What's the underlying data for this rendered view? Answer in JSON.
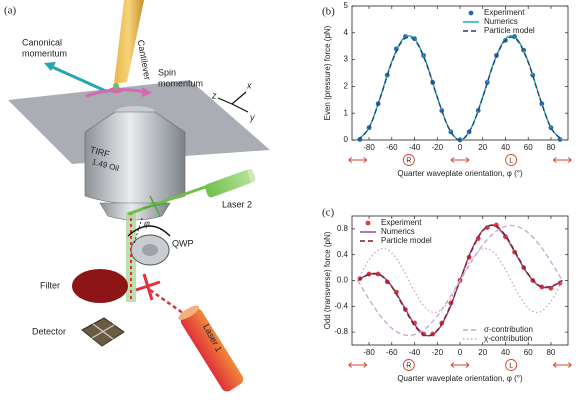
{
  "panel_labels": [
    "(a)",
    "(b)",
    "(c)"
  ],
  "diagram": {
    "cantilever": "Cantilever",
    "canonical_momentum": [
      "Canonical",
      "momentum"
    ],
    "spin_momentum": [
      "Spin",
      "momentum"
    ],
    "axes": [
      "z",
      "x",
      "y"
    ],
    "objective": [
      "TIRF",
      "1.49 Oil"
    ],
    "laser_2": "Laser 2",
    "qwp": "QWP",
    "angle": "φ",
    "filter": "Filter",
    "detector": "Detector",
    "laser_1": "Laser 1"
  },
  "chart_data": [
    {
      "type": "line",
      "xlabel": "Quarter waveplate orientation, φ (°)",
      "ylabel": "Even (pressure) force (pN)",
      "xlim": [
        -95,
        95
      ],
      "ylim": [
        0,
        5
      ],
      "xticks": [
        -80,
        -60,
        -40,
        -20,
        0,
        20,
        40,
        60,
        80
      ],
      "yticks": [
        0,
        1,
        2,
        3,
        4,
        5
      ],
      "polarization_markers": {
        "linear_x": [
          -90,
          0,
          90
        ],
        "circular": [
          {
            "x": -45,
            "label": "R"
          },
          {
            "x": 45,
            "label": "L"
          }
        ]
      },
      "series": [
        {
          "name": "Experiment",
          "color": "#2a64b4",
          "style": "markers",
          "legend": "top-right",
          "x": [
            -88,
            -80,
            -72,
            -64,
            -56,
            -48,
            -40,
            -32,
            -24,
            -16,
            -8,
            0,
            8,
            16,
            24,
            32,
            40,
            48,
            56,
            64,
            72,
            80,
            88
          ],
          "values": [
            0.02,
            0.46,
            1.35,
            2.42,
            3.4,
            3.86,
            3.78,
            3.15,
            2.15,
            1.1,
            0.3,
            0,
            0.3,
            1.1,
            2.15,
            3.15,
            3.72,
            3.86,
            3.35,
            2.42,
            1.35,
            0.46,
            0.02
          ]
        },
        {
          "name": "Numerics",
          "color": "#19a5a8",
          "style": "solid",
          "legend": "top-right",
          "x": [
            -90,
            -80,
            -70,
            -60,
            -50,
            -40,
            -30,
            -20,
            -10,
            0,
            10,
            20,
            30,
            40,
            50,
            60,
            70,
            80,
            90
          ],
          "values": [
            0,
            0.46,
            1.61,
            2.93,
            3.78,
            3.78,
            2.93,
            1.61,
            0.46,
            0,
            0.46,
            1.61,
            2.93,
            3.78,
            3.78,
            2.93,
            1.61,
            0.46,
            0
          ]
        },
        {
          "name": "Particle model",
          "color": "#2d3a6e",
          "style": "dashed",
          "legend": "top-right",
          "x": [
            -90,
            -80,
            -70,
            -60,
            -50,
            -40,
            -30,
            -20,
            -10,
            0,
            10,
            20,
            30,
            40,
            50,
            60,
            70,
            80,
            90
          ],
          "values": [
            0,
            0.45,
            1.59,
            2.89,
            3.73,
            3.73,
            2.89,
            1.59,
            0.45,
            0,
            0.45,
            1.59,
            2.89,
            3.73,
            3.73,
            2.89,
            1.59,
            0.45,
            0
          ]
        }
      ]
    },
    {
      "type": "line",
      "xlabel": "Quarter waveplate orientation, φ (°)",
      "ylabel": "Odd (transverse) force (pN)",
      "xlim": [
        -95,
        95
      ],
      "ylim": [
        -1,
        1
      ],
      "xticks": [
        -80,
        -60,
        -40,
        -20,
        0,
        20,
        40,
        60,
        80
      ],
      "yticks": [
        0.8,
        0.4,
        {
          "value": 0,
          "label": "0.0"
        },
        -0.4,
        -0.8
      ],
      "polarization_markers": {
        "linear_x": [
          -90,
          0,
          90
        ],
        "circular": [
          {
            "x": -45,
            "label": "R"
          },
          {
            "x": 45,
            "label": "L"
          }
        ]
      },
      "series": [
        {
          "name": "Experiment",
          "color": "#e0393a",
          "style": "markers",
          "legend": "top-left",
          "x": [
            -88,
            -80,
            -72,
            -64,
            -56,
            -48,
            -40,
            -32,
            -24,
            -16,
            -8,
            0,
            8,
            16,
            24,
            32,
            40,
            48,
            56,
            64,
            72,
            80,
            88
          ],
          "values": [
            0.03,
            0.1,
            0.1,
            -0.02,
            -0.18,
            -0.45,
            -0.66,
            -0.83,
            -0.83,
            -0.66,
            -0.35,
            0,
            0.36,
            0.65,
            0.82,
            0.86,
            0.68,
            0.44,
            0.2,
            0,
            -0.1,
            -0.12,
            -0.04
          ]
        },
        {
          "name": "Numerics",
          "color": "#8b3f90",
          "style": "solid",
          "legend": "top-left",
          "x": [
            -90,
            -80,
            -70,
            -60,
            -50,
            -40,
            -30,
            -20,
            -10,
            0,
            10,
            20,
            30,
            40,
            50,
            60,
            70,
            80,
            90
          ],
          "values": [
            0,
            0.1,
            0.09,
            -0.09,
            -0.38,
            -0.68,
            -0.85,
            -0.78,
            -0.47,
            0,
            0.47,
            0.78,
            0.85,
            0.68,
            0.38,
            0.09,
            -0.09,
            -0.1,
            0
          ]
        },
        {
          "name": "Particle model",
          "color": "#8b1a1a",
          "style": "dashed",
          "legend": "top-left",
          "x": [
            -90,
            -80,
            -70,
            -60,
            -50,
            -40,
            -30,
            -20,
            -10,
            0,
            10,
            20,
            30,
            40,
            50,
            60,
            70,
            80,
            90
          ],
          "values": [
            0,
            0.09,
            0.08,
            -0.1,
            -0.4,
            -0.7,
            -0.86,
            -0.77,
            -0.45,
            0,
            0.45,
            0.77,
            0.86,
            0.7,
            0.4,
            0.1,
            -0.08,
            -0.09,
            0
          ]
        },
        {
          "name": "σ-contribution",
          "color": "#c4a6cc",
          "style": "dashed",
          "legend": "bottom-right",
          "x": [
            -90,
            -80,
            -70,
            -60,
            -50,
            -40,
            -30,
            -20,
            -10,
            0,
            10,
            20,
            30,
            40,
            50,
            60,
            70,
            80,
            90
          ],
          "values": [
            0,
            -0.29,
            -0.55,
            -0.74,
            -0.84,
            -0.84,
            -0.74,
            -0.55,
            -0.29,
            0,
            0.29,
            0.55,
            0.74,
            0.84,
            0.84,
            0.74,
            0.55,
            0.29,
            0
          ]
        },
        {
          "name": "χ-contribution",
          "color": "#c4a6cc",
          "style": "dotted",
          "legend": "bottom-right",
          "x": [
            -90,
            -80,
            -70,
            -60,
            -50,
            -40,
            -30,
            -20,
            -10,
            0,
            10,
            20,
            30,
            40,
            50,
            60,
            70,
            80,
            90
          ],
          "values": [
            0,
            0.32,
            0.49,
            0.43,
            0.17,
            -0.17,
            -0.43,
            -0.49,
            -0.32,
            0,
            0.32,
            0.49,
            0.43,
            0.17,
            -0.17,
            -0.43,
            -0.49,
            -0.32,
            0
          ]
        }
      ]
    }
  ]
}
